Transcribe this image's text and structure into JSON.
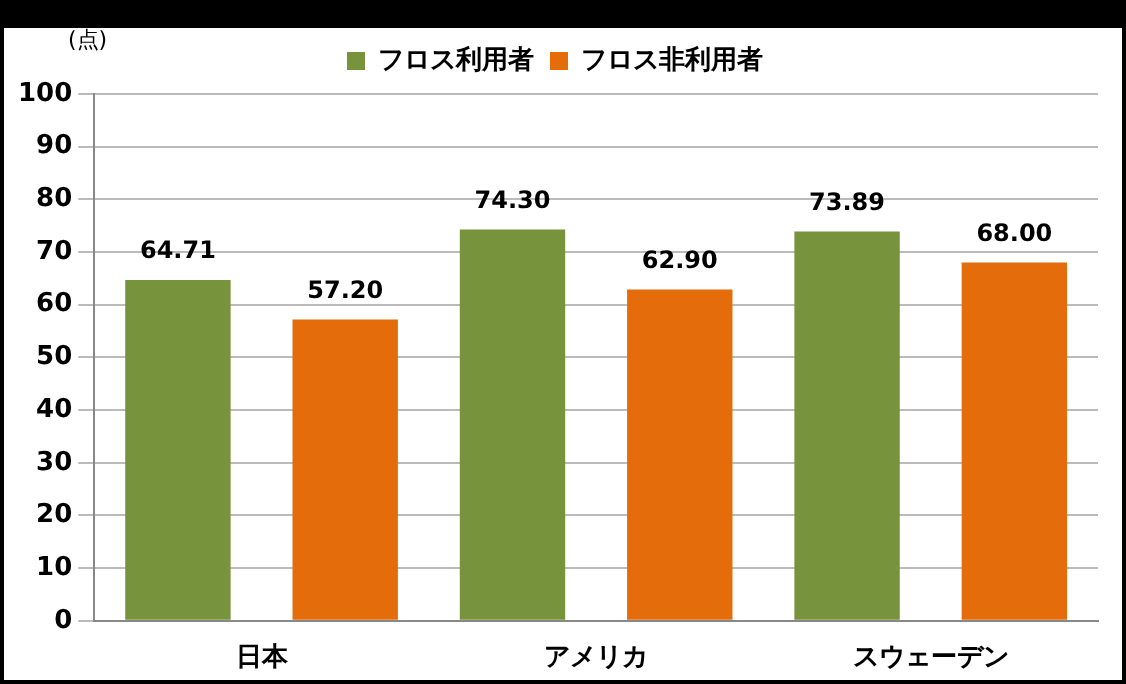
{
  "chart_data": {
    "type": "bar",
    "ylabel": "(点)",
    "categories": [
      "日本",
      "アメリカ",
      "スウェーデン"
    ],
    "series": [
      {
        "name": "フロス利用者",
        "color": "#77933c",
        "values": [
          64.71,
          74.3,
          73.89
        ]
      },
      {
        "name": "フロス非利用者",
        "color": "#e46c0a",
        "values": [
          57.2,
          62.9,
          68.0
        ]
      }
    ],
    "value_labels": [
      [
        "64.71",
        "74.30",
        "73.89"
      ],
      [
        "57.20",
        "62.90",
        "68.00"
      ]
    ],
    "ylim": [
      0,
      100
    ],
    "yticks": [
      0,
      10,
      20,
      30,
      40,
      50,
      60,
      70,
      80,
      90,
      100
    ],
    "grid": "y",
    "legend": "top"
  }
}
